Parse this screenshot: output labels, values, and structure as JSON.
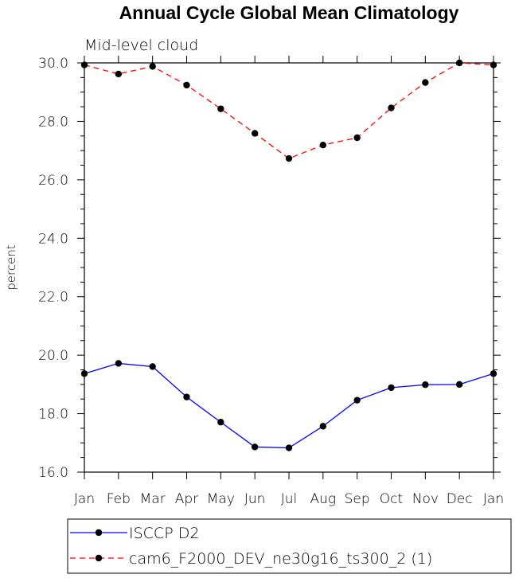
{
  "chart_data": {
    "type": "line",
    "title": "Annual Cycle Global Mean Climatology",
    "subtitle": "Mid-level cloud",
    "ylabel": "percent",
    "xlabel": "",
    "categories": [
      "Jan",
      "Feb",
      "Mar",
      "Apr",
      "May",
      "Jun",
      "Jul",
      "Aug",
      "Sep",
      "Oct",
      "Nov",
      "Dec",
      "Jan"
    ],
    "ylim": [
      16.0,
      30.0
    ],
    "yticks": [
      "16.0",
      "18.0",
      "20.0",
      "22.0",
      "24.0",
      "26.0",
      "28.0",
      "30.0"
    ],
    "legend_position": "bottom",
    "series": [
      {
        "name": "ISCCP D2",
        "color": "#0000ff",
        "dash": "solid",
        "values": [
          19.37,
          19.72,
          19.61,
          18.57,
          17.71,
          16.86,
          16.83,
          17.57,
          18.46,
          18.89,
          18.99,
          19.0,
          19.37
        ]
      },
      {
        "name": "cam6_F2000_DEV_ne30g16_ts300_2 (1)",
        "color": "#ff0000",
        "dash": "dashed",
        "values": [
          29.93,
          29.62,
          29.88,
          29.24,
          28.43,
          27.59,
          26.73,
          27.19,
          27.44,
          28.46,
          29.33,
          30.0,
          29.93
        ]
      }
    ]
  }
}
